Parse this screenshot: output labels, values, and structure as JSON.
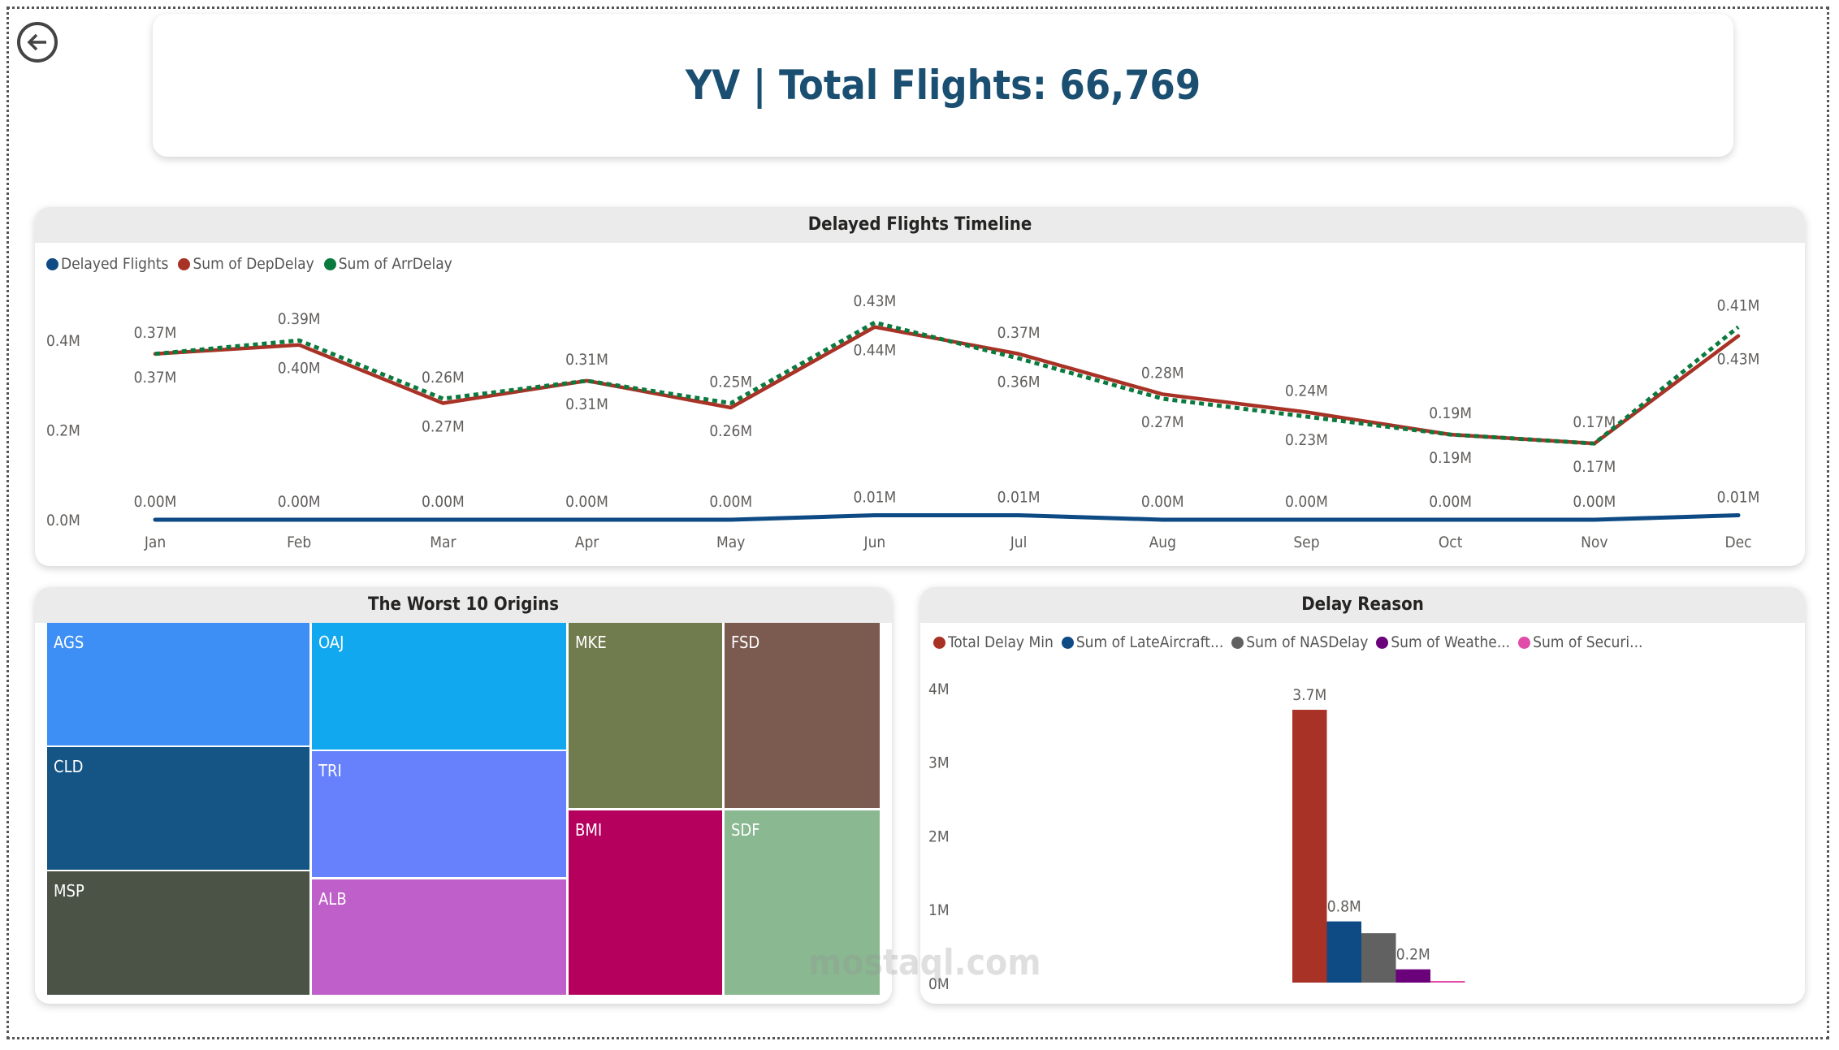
{
  "header": {
    "title": "YV | Total Flights: 66,769"
  },
  "timeline": {
    "title": "Delayed Flights Timeline",
    "chart_data": {
      "type": "line",
      "categories": [
        "Jan",
        "Feb",
        "Mar",
        "Apr",
        "May",
        "Jun",
        "Jul",
        "Aug",
        "Sep",
        "Oct",
        "Nov",
        "Dec"
      ],
      "yticks": [
        "0.0M",
        "0.2M",
        "0.4M"
      ],
      "ylim": [
        0,
        0.45
      ],
      "series": [
        {
          "name": "Delayed Flights",
          "color": "#0e4a84",
          "values": [
            0.0,
            0.0,
            0.0,
            0.0,
            0.0,
            0.01,
            0.01,
            0.0,
            0.0,
            0.0,
            0.0,
            0.01
          ],
          "labels": [
            "0.00M",
            "0.00M",
            "0.00M",
            "0.00M",
            "0.00M",
            "0.01M",
            "0.01M",
            "0.00M",
            "0.00M",
            "0.00M",
            "0.00M",
            "0.01M"
          ]
        },
        {
          "name": "Sum of DepDelay",
          "color": "#a93226",
          "values": [
            0.37,
            0.39,
            0.26,
            0.31,
            0.25,
            0.43,
            0.37,
            0.28,
            0.24,
            0.19,
            0.17,
            0.41
          ],
          "labels": [
            "0.37M",
            "0.39M",
            "0.26M",
            "0.31M",
            "0.25M",
            "0.43M",
            "0.37M",
            "0.28M",
            "0.24M",
            "0.19M",
            "0.17M",
            "0.41M"
          ]
        },
        {
          "name": "Sum of ArrDelay",
          "color": "#0b7a3e",
          "values": [
            0.37,
            0.4,
            0.27,
            0.31,
            0.26,
            0.44,
            0.36,
            0.27,
            0.23,
            0.19,
            0.17,
            0.43
          ],
          "labels": [
            "0.37M",
            "0.40M",
            "0.27M",
            "0.31M",
            "0.26M",
            "0.44M",
            "0.36M",
            "0.27M",
            "0.23M",
            "0.19M",
            "0.17M",
            "0.43M"
          ]
        }
      ]
    }
  },
  "origins": {
    "title": "The Worst 10 Origins",
    "tiles": [
      {
        "label": "AGS",
        "color": "#3d8ff5"
      },
      {
        "label": "CLD",
        "color": "#155585"
      },
      {
        "label": "MSP",
        "color": "#4a5346"
      },
      {
        "label": "OAJ",
        "color": "#12a8ef"
      },
      {
        "label": "TRI",
        "color": "#6681fb"
      },
      {
        "label": "ALB",
        "color": "#bf5fc9"
      },
      {
        "label": "MKE",
        "color": "#717c4e"
      },
      {
        "label": "BMI",
        "color": "#b5005e"
      },
      {
        "label": "FSD",
        "color": "#7b5a50"
      },
      {
        "label": "SDF",
        "color": "#8ab891"
      }
    ]
  },
  "delay_reason": {
    "title": "Delay Reason",
    "chart_data": {
      "type": "bar",
      "yticks": [
        "0M",
        "1M",
        "2M",
        "3M",
        "4M"
      ],
      "ylim": [
        0,
        4
      ],
      "series": [
        {
          "name": "Total Delay Min",
          "color": "#a93226",
          "value": 3.7,
          "label": "3.7M"
        },
        {
          "name": "Sum of LateAircraft...",
          "color": "#0e4a84",
          "value": 0.83,
          "label": "0.8M"
        },
        {
          "name": "Sum of NASDelay",
          "color": "#616161",
          "value": 0.67,
          "label": ""
        },
        {
          "name": "Sum of Weathe...",
          "color": "#6b007b",
          "value": 0.18,
          "label": "0.2M"
        },
        {
          "name": "Sum of Securi...",
          "color": "#e04ca8",
          "value": 0.01,
          "label": ""
        }
      ]
    }
  },
  "watermark": "mostaql.com"
}
